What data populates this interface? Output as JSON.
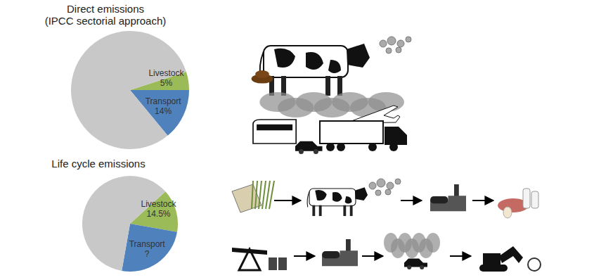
{
  "chart_data": [
    {
      "type": "pie",
      "title": "Direct emissions (IPCC sectorial approach)",
      "categories": [
        "Livestock",
        "Transport",
        null
      ],
      "values": [
        5,
        14,
        81
      ],
      "value_labels": [
        "5%",
        "14%",
        null
      ],
      "colors": [
        "#9bbb59",
        "#4f81bd",
        "#c8c8c8"
      ],
      "data_labels": true
    },
    {
      "type": "pie",
      "title": "Life cycle emissions",
      "categories": [
        "Livestock",
        "Transport",
        null
      ],
      "values": [
        14.5,
        25,
        60.5
      ],
      "value_labels": [
        "14.5%",
        "?",
        null
      ],
      "colors": [
        "#9bbb59",
        "#4f81bd",
        "#c8c8c8"
      ],
      "data_labels": true
    }
  ]
}
